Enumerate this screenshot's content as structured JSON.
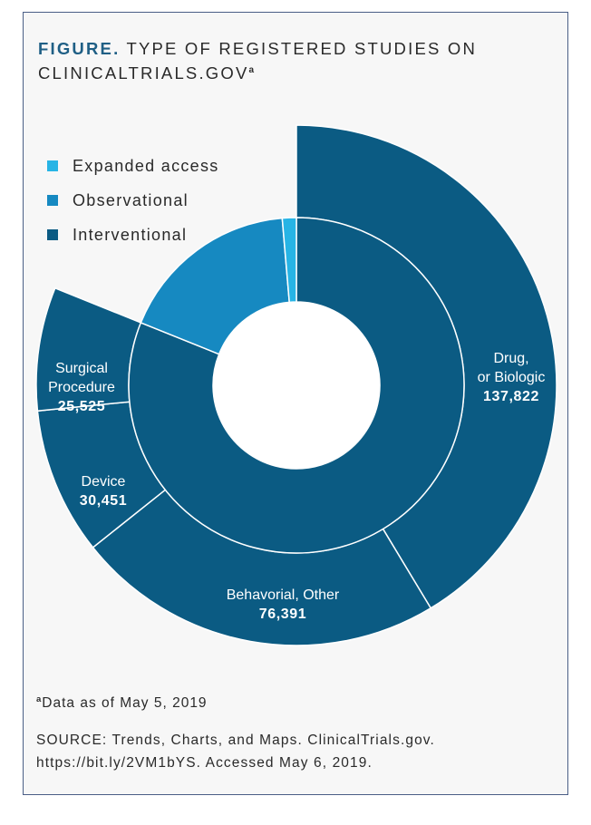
{
  "figure": {
    "label": "FIGURE.",
    "title_line1": "TYPE OF REGISTERED STUDIES ON",
    "title_line2": "CLINICALTRIALS.GOV",
    "title_marker": "a"
  },
  "colors": {
    "expanded": "#27b4e5",
    "observational": "#1689c1",
    "interventional": "#0b5b83",
    "separator": "#ffffff",
    "hole": "#ffffff"
  },
  "chart_data": {
    "type": "pie",
    "subtype": "sunburst",
    "title": "TYPE OF REGISTERED STUDIES ON CLINICALTRIALS.GOV",
    "legend": [
      "Expanded access",
      "Observational",
      "Interventional"
    ],
    "inner_ring": [
      {
        "name": "Interventional",
        "value": 270189
      },
      {
        "name": "Observational",
        "value": 58500
      },
      {
        "name": "Expanded access",
        "value": 4500
      }
    ],
    "outer_ring": [
      {
        "name": "Drug, or Biologic",
        "line1": "Drug,",
        "line2": "or Biologic",
        "value": 137822,
        "value_text": "137,822",
        "parent": "Interventional"
      },
      {
        "name": "Behavorial, Other",
        "line1": "Behavorial, Other",
        "value": 76391,
        "value_text": "76,391",
        "parent": "Interventional"
      },
      {
        "name": "Device",
        "line1": "Device",
        "value": 30451,
        "value_text": "30,451",
        "parent": "Interventional"
      },
      {
        "name": "Surgical Procedure",
        "line1": "Surgical",
        "line2": "Procedure",
        "value": 25525,
        "value_text": "25,525",
        "parent": "Interventional"
      }
    ]
  },
  "footnote": {
    "marker": "a",
    "text": "Data as of May 5, 2019"
  },
  "source": {
    "line1": "SOURCE: Trends, Charts, and Maps. ClinicalTrials.gov.",
    "line2": "https://bit.ly/2VM1bYS. Accessed May 6, 2019."
  }
}
